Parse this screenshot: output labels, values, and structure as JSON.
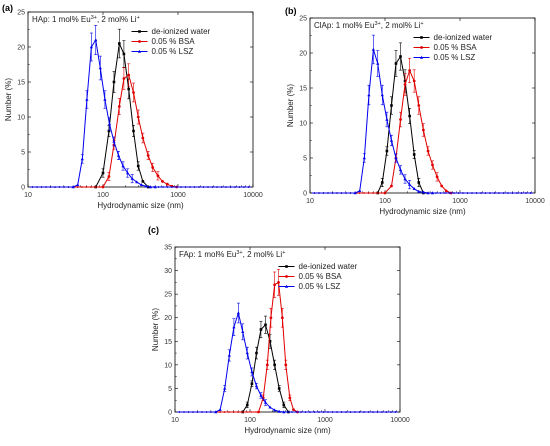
{
  "chart_data": [
    {
      "panel": "(a)",
      "type": "line",
      "annotation": {
        "prefix": "HAp: 1 mol% Eu",
        "sup1": "3+",
        "mid": ", 2 mol% Li",
        "sup2": "+"
      },
      "xlabel": "Hydrodynamic size (nm)",
      "ylabel": "Number (%)",
      "xscale": "log",
      "xlim": [
        10,
        10000
      ],
      "ylim": [
        0,
        25
      ],
      "xticks": [
        10,
        100,
        1000,
        10000
      ],
      "yticks": [
        0,
        5,
        10,
        15,
        20,
        25
      ],
      "legend": "top-right",
      "series": [
        {
          "name": "de-ionized water",
          "color": "#000000",
          "marker": "square",
          "x": [
            80,
            100,
            120,
            140,
            165,
            190,
            220,
            255,
            295,
            340,
            400
          ],
          "y": [
            0,
            2,
            8,
            15,
            20.5,
            19,
            14,
            8,
            3,
            0.8,
            0
          ]
        },
        {
          "name": "0.05 % BSA",
          "color": "#e00000",
          "marker": "circle",
          "x": [
            100,
            120,
            140,
            165,
            190,
            220,
            255,
            295,
            340,
            400,
            460,
            540,
            620,
            720,
            830,
            960
          ],
          "y": [
            0,
            1.5,
            6,
            11.5,
            15.5,
            16,
            13.5,
            10,
            7,
            4.5,
            2.8,
            1.6,
            0.8,
            0.4,
            0.1,
            0
          ]
        },
        {
          "name": "0.05 % LSZ",
          "color": "#0000ee",
          "marker": "triangle",
          "x": [
            40,
            46,
            53,
            61,
            70,
            80,
            92,
            106,
            122,
            140,
            161,
            185,
            213,
            245,
            282,
            325,
            375,
            430,
            495
          ],
          "y": [
            0,
            0.3,
            4,
            12.5,
            20,
            21,
            17,
            12.5,
            9,
            6.5,
            4.5,
            3,
            2,
            1.2,
            0.7,
            0.3,
            0.1,
            0,
            0
          ]
        }
      ]
    },
    {
      "panel": "(b)",
      "type": "line",
      "annotation": {
        "prefix": "ClAp: 1 mol% Eu",
        "sup1": "3+",
        "mid": ", 2 mol% Li",
        "sup2": "+"
      },
      "xlabel": "Hydrodynamic size (nm)",
      "ylabel": "Number (%)",
      "xscale": "log",
      "xlim": [
        10,
        10000
      ],
      "ylim": [
        0,
        25
      ],
      "xticks": [
        10,
        100,
        1000,
        10000
      ],
      "yticks": [
        0,
        5,
        10,
        15,
        20,
        25
      ],
      "legend": "top-right",
      "series": [
        {
          "name": "de-ionized water",
          "color": "#000000",
          "marker": "square",
          "x": [
            80,
            92,
            106,
            122,
            140,
            161,
            185,
            213,
            245,
            282,
            325
          ],
          "y": [
            0,
            1.5,
            6,
            12.5,
            18.5,
            19.5,
            16,
            11,
            5.5,
            1.5,
            0
          ]
        },
        {
          "name": "0.05 % BSA",
          "color": "#e00000",
          "marker": "circle",
          "x": [
            100,
            122,
            140,
            161,
            185,
            213,
            245,
            282,
            325,
            375,
            430,
            495,
            570,
            655,
            760
          ],
          "y": [
            0,
            1,
            5,
            10.5,
            15.5,
            17.5,
            16,
            12.5,
            9,
            6,
            4,
            2.3,
            1,
            0.3,
            0
          ]
        },
        {
          "name": "0.05 % LSZ",
          "color": "#0000ee",
          "marker": "triangle",
          "x": [
            40,
            46,
            53,
            61,
            70,
            80,
            92,
            106,
            122,
            140,
            161,
            185,
            213,
            245,
            282,
            325,
            375,
            430
          ],
          "y": [
            0,
            0.3,
            5,
            14,
            20.5,
            18.5,
            14,
            10.5,
            7.5,
            5,
            3.3,
            2,
            1.2,
            0.6,
            0.2,
            0.1,
            0,
            0
          ]
        }
      ]
    },
    {
      "panel": "(c)",
      "type": "line",
      "annotation": {
        "prefix": "FAp: 1 mol% Eu",
        "sup1": "3+",
        "mid": ", 2 mol% Li",
        "sup2": "+"
      },
      "xlabel": "Hydrodynamic size (nm)",
      "ylabel": "Number (%)",
      "xscale": "log",
      "xlim": [
        10,
        10000
      ],
      "ylim": [
        0,
        35
      ],
      "xticks": [
        10,
        100,
        1000,
        10000
      ],
      "yticks": [
        0,
        5,
        10,
        15,
        20,
        25,
        30,
        35
      ],
      "legend": "top-right",
      "series": [
        {
          "name": "de-ionized water",
          "color": "#000000",
          "marker": "square",
          "x": [
            80,
            92,
            106,
            122,
            140,
            161,
            185,
            213,
            245,
            282,
            325
          ],
          "y": [
            0,
            1.5,
            6,
            12.5,
            17.5,
            18.5,
            15,
            10,
            5,
            1.5,
            0
          ]
        },
        {
          "name": "0.05 % BSA",
          "color": "#e00000",
          "marker": "circle",
          "x": [
            130,
            150,
            170,
            190,
            213,
            240,
            270,
            300,
            340,
            380,
            430
          ],
          "y": [
            0,
            3,
            10,
            20,
            27,
            27.5,
            20,
            10,
            3,
            0.5,
            0
          ]
        },
        {
          "name": "0.05 % LSZ",
          "color": "#0000ee",
          "marker": "triangle",
          "x": [
            35,
            40,
            46,
            53,
            61,
            70,
            80,
            92,
            106,
            122,
            140,
            161,
            185,
            213,
            245,
            282
          ],
          "y": [
            0,
            0.5,
            5,
            12,
            18,
            21,
            17,
            12.5,
            8.5,
            5.5,
            3.5,
            2,
            1,
            0.4,
            0.1,
            0
          ]
        }
      ]
    }
  ]
}
